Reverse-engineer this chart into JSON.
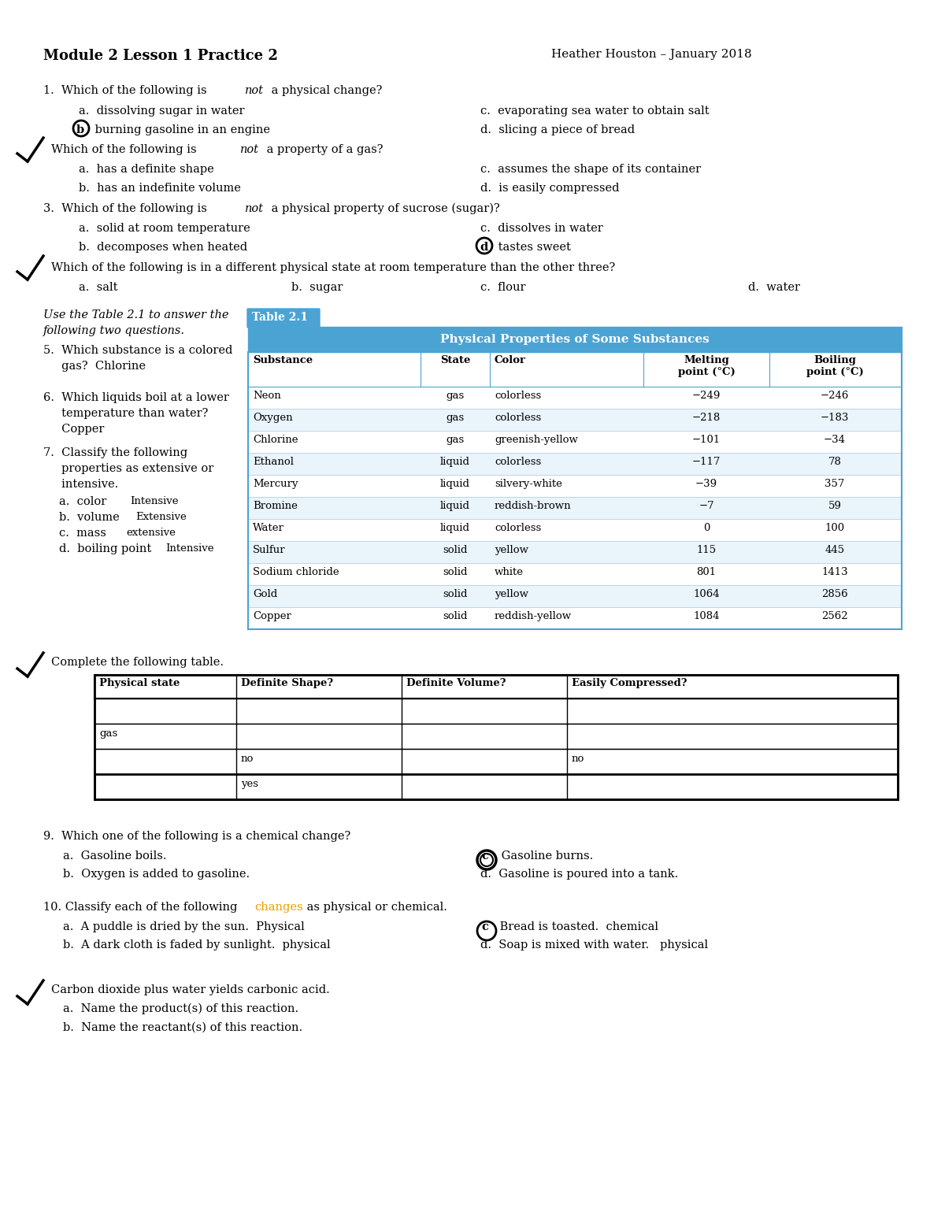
{
  "title_left": "Module 2 Lesson 1 Practice 2",
  "title_right": "Heather Houston – January 2018",
  "bg_color": "#ffffff",
  "table_header_color": "#4ba3d3",
  "table_tab_text": "Table 2.1",
  "table_header_text": "Physical Properties of Some Substances",
  "table_col_headers": [
    "Substance",
    "State",
    "Color",
    "Melting\npoint (°C)",
    "Boiling\npoint (°C)"
  ],
  "table_col_aligns": [
    "left",
    "center",
    "left",
    "center",
    "center"
  ],
  "table_rows": [
    [
      "Neon",
      "gas",
      "colorless",
      "−249",
      "−246"
    ],
    [
      "Oxygen",
      "gas",
      "colorless",
      "−218",
      "−183"
    ],
    [
      "Chlorine",
      "gas",
      "greenish-yellow",
      "−101",
      "−34"
    ],
    [
      "Ethanol",
      "liquid",
      "colorless",
      "−117",
      "78"
    ],
    [
      "Mercury",
      "liquid",
      "silvery-white",
      "−39",
      "357"
    ],
    [
      "Bromine",
      "liquid",
      "reddish-brown",
      "−7",
      "59"
    ],
    [
      "Water",
      "liquid",
      "colorless",
      "0",
      "100"
    ],
    [
      "Sulfur",
      "solid",
      "yellow",
      "115",
      "445"
    ],
    [
      "Sodium chloride",
      "solid",
      "white",
      "801",
      "1413"
    ],
    [
      "Gold",
      "solid",
      "yellow",
      "1064",
      "2856"
    ],
    [
      "Copper",
      "solid",
      "reddish-yellow",
      "1084",
      "2562"
    ]
  ],
  "complete_table_headers": [
    "Physical state",
    "Definite Shape?",
    "Definite Volume?",
    "Easily Compressed?"
  ],
  "complete_table_rows": [
    [
      "",
      "",
      "",
      ""
    ],
    [
      "gas",
      "",
      "",
      ""
    ],
    [
      "",
      "no",
      "",
      "no"
    ],
    [
      "",
      "yes",
      "",
      ""
    ]
  ],
  "font_size": 10.5,
  "small_font": 9.5
}
